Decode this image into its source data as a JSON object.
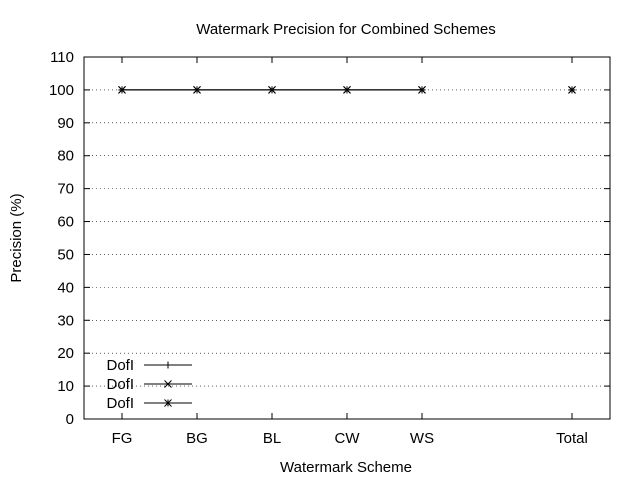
{
  "chart_data": {
    "type": "line",
    "title": "Watermark Precision for Combined Schemes",
    "xlabel": "Watermark Scheme",
    "ylabel": "Precision (%)",
    "categories": [
      "FG",
      "BG",
      "BL",
      "CW",
      "WS",
      "Total"
    ],
    "ylim": [
      0,
      110
    ],
    "yticks": [
      0,
      10,
      20,
      30,
      40,
      50,
      60,
      70,
      80,
      90,
      100,
      110
    ],
    "grid": true,
    "legend_position": "bottom-left",
    "series": [
      {
        "name": "DofI",
        "marker": "plus",
        "points": [
          {
            "x": "FG",
            "y": 100
          },
          {
            "x": "BG",
            "y": 100
          },
          {
            "x": "BL",
            "y": 100
          },
          {
            "x": "CW",
            "y": 100
          },
          {
            "x": "WS",
            "y": 100
          },
          {
            "x": "Total",
            "y": 100
          }
        ]
      },
      {
        "name": "DofI",
        "marker": "cross",
        "points": [
          {
            "x": "FG",
            "y": 100
          },
          {
            "x": "BG",
            "y": 100
          },
          {
            "x": "BL",
            "y": 100
          },
          {
            "x": "CW",
            "y": 100
          },
          {
            "x": "WS",
            "y": 100
          },
          {
            "x": "Total",
            "y": 100
          }
        ]
      },
      {
        "name": "DofI",
        "marker": "star",
        "points": [
          {
            "x": "FG",
            "y": 100
          },
          {
            "x": "BG",
            "y": 100
          },
          {
            "x": "BL",
            "y": 100
          },
          {
            "x": "CW",
            "y": 100
          },
          {
            "x": "WS",
            "y": 100
          },
          {
            "x": "Total",
            "y": 100
          }
        ]
      }
    ]
  }
}
